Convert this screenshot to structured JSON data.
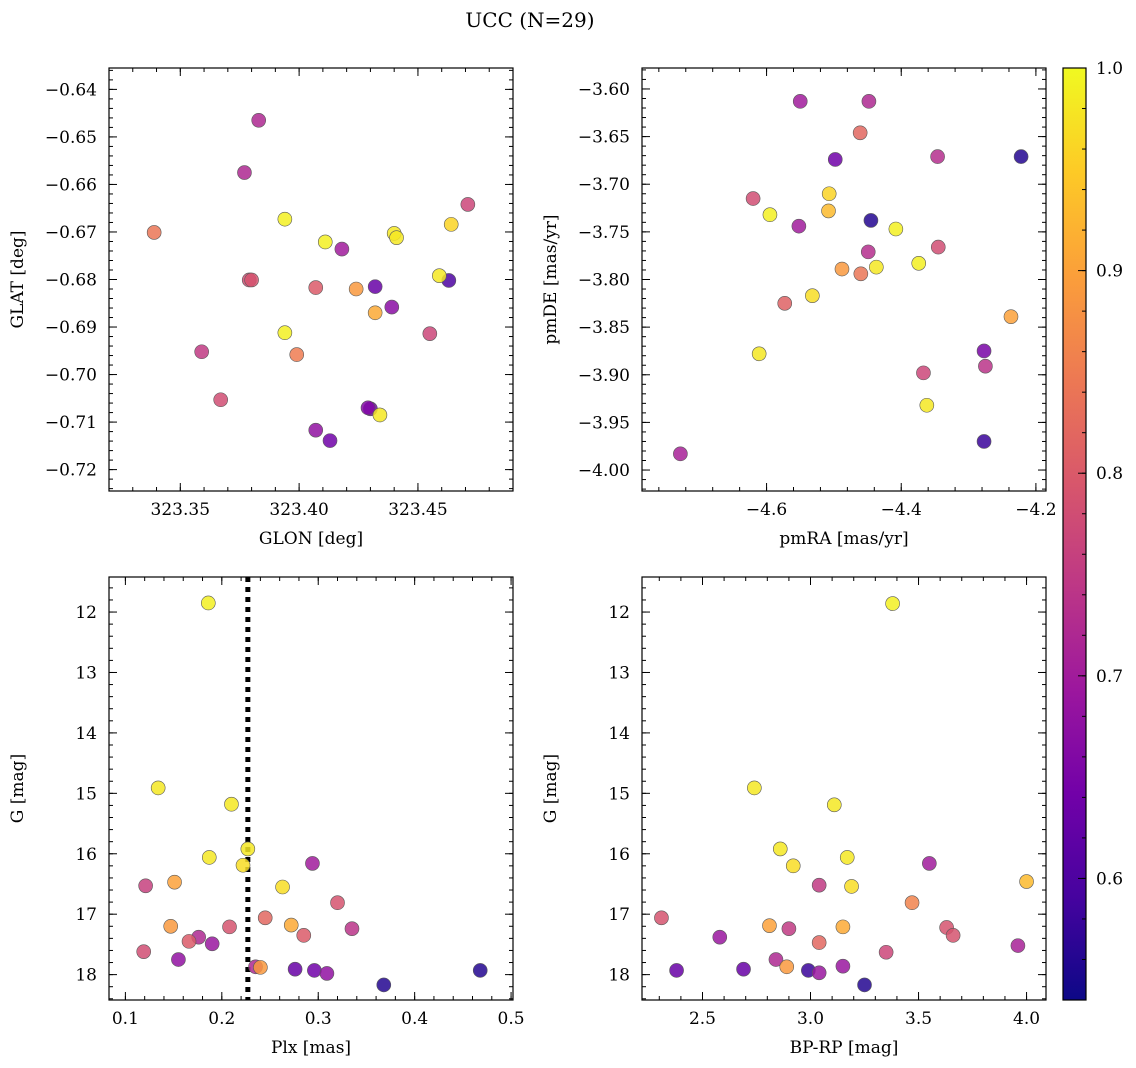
{
  "figure": {
    "title": "UCC (N=29)"
  },
  "colorbar": {
    "range": [
      0.54,
      1.0
    ],
    "ticks": [
      0.6,
      0.7,
      0.8,
      0.9,
      1.0
    ],
    "tick_labels": [
      "0.6",
      "0.7",
      "0.8",
      "0.9",
      "1.0"
    ],
    "colormap": "plasma",
    "colormap_stops": [
      "#0d0887",
      "#46039f",
      "#7201a8",
      "#9c179e",
      "#bd3786",
      "#d8576b",
      "#ed7953",
      "#fb9f3a",
      "#fdca26",
      "#f0f921"
    ]
  },
  "chart_data": [
    {
      "type": "scatter",
      "xlabel": "GLON [deg]",
      "ylabel": "GLAT [deg]",
      "xlim": [
        323.32,
        323.49
      ],
      "ylim": [
        -0.7245,
        -0.6355
      ],
      "invert_y": false,
      "xticks": [
        323.35,
        323.4,
        323.45
      ],
      "xtick_labels": [
        "323.35",
        "323.40",
        "323.45"
      ],
      "yticks": [
        -0.64,
        -0.65,
        -0.66,
        -0.67,
        -0.68,
        -0.69,
        -0.7,
        -0.71,
        -0.72
      ],
      "ytick_labels": [
        "−0.64",
        "−0.65",
        "−0.66",
        "−0.67",
        "−0.68",
        "−0.69",
        "−0.70",
        "−0.71",
        "−0.72"
      ],
      "points": [
        {
          "x": 323.339,
          "y": -0.6701,
          "c": 0.84
        },
        {
          "x": 323.383,
          "y": -0.6465,
          "c": 0.72
        },
        {
          "x": 323.377,
          "y": -0.6575,
          "c": 0.72
        },
        {
          "x": 323.394,
          "y": -0.6673,
          "c": 0.99
        },
        {
          "x": 323.411,
          "y": -0.6721,
          "c": 0.99
        },
        {
          "x": 323.418,
          "y": -0.6736,
          "c": 0.7
        },
        {
          "x": 323.44,
          "y": -0.6703,
          "c": 0.98
        },
        {
          "x": 323.441,
          "y": -0.6712,
          "c": 0.98
        },
        {
          "x": 323.464,
          "y": -0.6684,
          "c": 0.96
        },
        {
          "x": 323.471,
          "y": -0.6642,
          "c": 0.77
        },
        {
          "x": 323.379,
          "y": -0.6801,
          "c": 0.78
        },
        {
          "x": 323.38,
          "y": -0.6801,
          "c": 0.79
        },
        {
          "x": 323.407,
          "y": -0.6817,
          "c": 0.8
        },
        {
          "x": 323.424,
          "y": -0.682,
          "c": 0.89
        },
        {
          "x": 323.432,
          "y": -0.6815,
          "c": 0.63
        },
        {
          "x": 323.459,
          "y": -0.6792,
          "c": 0.98
        },
        {
          "x": 323.463,
          "y": -0.6802,
          "c": 0.6
        },
        {
          "x": 323.394,
          "y": -0.6912,
          "c": 0.99
        },
        {
          "x": 323.432,
          "y": -0.687,
          "c": 0.91
        },
        {
          "x": 323.439,
          "y": -0.6858,
          "c": 0.67
        },
        {
          "x": 323.455,
          "y": -0.6914,
          "c": 0.77
        },
        {
          "x": 323.359,
          "y": -0.6952,
          "c": 0.75
        },
        {
          "x": 323.399,
          "y": -0.6958,
          "c": 0.85
        },
        {
          "x": 323.367,
          "y": -0.7053,
          "c": 0.78
        },
        {
          "x": 323.429,
          "y": -0.707,
          "c": 0.66
        },
        {
          "x": 323.43,
          "y": -0.7072,
          "c": 0.64
        },
        {
          "x": 323.434,
          "y": -0.7085,
          "c": 0.98
        },
        {
          "x": 323.407,
          "y": -0.7117,
          "c": 0.68
        },
        {
          "x": 323.413,
          "y": -0.7139,
          "c": 0.64
        }
      ]
    },
    {
      "type": "scatter",
      "xlabel": "pmRA [mas/yr]",
      "ylabel": "pmDE [mas/yr]",
      "xlim": [
        -4.785,
        -4.185
      ],
      "ylim": [
        -4.022,
        -3.578
      ],
      "invert_y": false,
      "xticks": [
        -4.6,
        -4.4,
        -4.2
      ],
      "xtick_labels": [
        "−4.6",
        "−4.4",
        "−4.2"
      ],
      "yticks": [
        -3.6,
        -3.65,
        -3.7,
        -3.75,
        -3.8,
        -3.85,
        -3.9,
        -3.95,
        -4.0
      ],
      "ytick_labels": [
        "−3.60",
        "−3.65",
        "−3.70",
        "−3.75",
        "−3.80",
        "−3.85",
        "−3.90",
        "−3.95",
        "−4.00"
      ],
      "points": [
        {
          "x": -4.55,
          "y": -3.613,
          "c": 0.7
        },
        {
          "x": -4.448,
          "y": -3.613,
          "c": 0.72
        },
        {
          "x": -4.461,
          "y": -3.646,
          "c": 0.82
        },
        {
          "x": -4.498,
          "y": -3.674,
          "c": 0.64
        },
        {
          "x": -4.346,
          "y": -3.671,
          "c": 0.73
        },
        {
          "x": -4.222,
          "y": -3.671,
          "c": 0.56
        },
        {
          "x": -4.507,
          "y": -3.71,
          "c": 0.96
        },
        {
          "x": -4.62,
          "y": -3.715,
          "c": 0.78
        },
        {
          "x": -4.595,
          "y": -3.732,
          "c": 0.99
        },
        {
          "x": -4.508,
          "y": -3.728,
          "c": 0.93
        },
        {
          "x": -4.552,
          "y": -3.744,
          "c": 0.7
        },
        {
          "x": -4.445,
          "y": -3.738,
          "c": 0.56
        },
        {
          "x": -4.408,
          "y": -3.747,
          "c": 0.99
        },
        {
          "x": -4.449,
          "y": -3.771,
          "c": 0.73
        },
        {
          "x": -4.345,
          "y": -3.766,
          "c": 0.78
        },
        {
          "x": -4.488,
          "y": -3.789,
          "c": 0.89
        },
        {
          "x": -4.46,
          "y": -3.794,
          "c": 0.84
        },
        {
          "x": -4.437,
          "y": -3.787,
          "c": 0.98
        },
        {
          "x": -4.374,
          "y": -3.783,
          "c": 0.99
        },
        {
          "x": -4.573,
          "y": -3.825,
          "c": 0.81
        },
        {
          "x": -4.532,
          "y": -3.817,
          "c": 0.97
        },
        {
          "x": -4.237,
          "y": -3.839,
          "c": 0.9
        },
        {
          "x": -4.611,
          "y": -3.878,
          "c": 0.98
        },
        {
          "x": -4.277,
          "y": -3.875,
          "c": 0.65
        },
        {
          "x": -4.275,
          "y": -3.891,
          "c": 0.74
        },
        {
          "x": -4.367,
          "y": -3.898,
          "c": 0.77
        },
        {
          "x": -4.362,
          "y": -3.932,
          "c": 0.98
        },
        {
          "x": -4.277,
          "y": -3.97,
          "c": 0.58
        },
        {
          "x": -4.728,
          "y": -3.983,
          "c": 0.71
        }
      ]
    },
    {
      "type": "scatter",
      "xlabel": "Plx [mas]",
      "ylabel": "G [mag]",
      "xlim": [
        0.083,
        0.502
      ],
      "ylim": [
        11.42,
        18.42
      ],
      "invert_y": true,
      "xticks": [
        0.1,
        0.2,
        0.3,
        0.4,
        0.5
      ],
      "xtick_labels": [
        "0.1",
        "0.2",
        "0.3",
        "0.4",
        "0.5"
      ],
      "yticks": [
        12,
        13,
        14,
        15,
        16,
        17,
        18
      ],
      "ytick_labels": [
        "12",
        "13",
        "14",
        "15",
        "16",
        "17",
        "18"
      ],
      "vline": {
        "x": 0.227,
        "style": "dotted",
        "color": "#000000"
      },
      "points": [
        {
          "x": 0.186,
          "y": 11.85,
          "c": 0.99
        },
        {
          "x": 0.134,
          "y": 14.91,
          "c": 0.98
        },
        {
          "x": 0.21,
          "y": 15.18,
          "c": 0.98
        },
        {
          "x": 0.227,
          "y": 15.92,
          "c": 0.98
        },
        {
          "x": 0.187,
          "y": 16.06,
          "c": 0.98
        },
        {
          "x": 0.222,
          "y": 16.19,
          "c": 0.97
        },
        {
          "x": 0.121,
          "y": 16.53,
          "c": 0.76
        },
        {
          "x": 0.151,
          "y": 16.47,
          "c": 0.9
        },
        {
          "x": 0.263,
          "y": 16.55,
          "c": 0.97
        },
        {
          "x": 0.294,
          "y": 16.16,
          "c": 0.7
        },
        {
          "x": 0.32,
          "y": 16.81,
          "c": 0.79
        },
        {
          "x": 0.147,
          "y": 17.2,
          "c": 0.89
        },
        {
          "x": 0.208,
          "y": 17.21,
          "c": 0.79
        },
        {
          "x": 0.245,
          "y": 17.06,
          "c": 0.82
        },
        {
          "x": 0.272,
          "y": 17.18,
          "c": 0.91
        },
        {
          "x": 0.335,
          "y": 17.24,
          "c": 0.74
        },
        {
          "x": 0.285,
          "y": 17.35,
          "c": 0.8
        },
        {
          "x": 0.166,
          "y": 17.45,
          "c": 0.8
        },
        {
          "x": 0.176,
          "y": 17.38,
          "c": 0.72
        },
        {
          "x": 0.19,
          "y": 17.49,
          "c": 0.69
        },
        {
          "x": 0.119,
          "y": 17.62,
          "c": 0.78
        },
        {
          "x": 0.155,
          "y": 17.75,
          "c": 0.68
        },
        {
          "x": 0.235,
          "y": 17.87,
          "c": 0.72
        },
        {
          "x": 0.24,
          "y": 17.88,
          "c": 0.89
        },
        {
          "x": 0.276,
          "y": 17.91,
          "c": 0.63
        },
        {
          "x": 0.296,
          "y": 17.93,
          "c": 0.64
        },
        {
          "x": 0.309,
          "y": 17.98,
          "c": 0.68
        },
        {
          "x": 0.468,
          "y": 17.93,
          "c": 0.56
        },
        {
          "x": 0.368,
          "y": 18.17,
          "c": 0.56
        }
      ]
    },
    {
      "type": "scatter",
      "xlabel": "BP-RP [mag]",
      "ylabel": "G [mag]",
      "xlim": [
        2.22,
        4.09
      ],
      "ylim": [
        11.42,
        18.42
      ],
      "invert_y": true,
      "xticks": [
        2.5,
        3.0,
        3.5,
        4.0
      ],
      "xtick_labels": [
        "2.5",
        "3.0",
        "3.5",
        "4.0"
      ],
      "yticks": [
        12,
        13,
        14,
        15,
        16,
        17,
        18
      ],
      "ytick_labels": [
        "12",
        "13",
        "14",
        "15",
        "16",
        "17",
        "18"
      ],
      "points": [
        {
          "x": 3.38,
          "y": 11.86,
          "c": 0.99
        },
        {
          "x": 2.74,
          "y": 14.91,
          "c": 0.98
        },
        {
          "x": 3.11,
          "y": 15.19,
          "c": 0.98
        },
        {
          "x": 2.86,
          "y": 15.92,
          "c": 0.98
        },
        {
          "x": 3.17,
          "y": 16.06,
          "c": 0.98
        },
        {
          "x": 2.92,
          "y": 16.2,
          "c": 0.97
        },
        {
          "x": 3.04,
          "y": 16.52,
          "c": 0.75
        },
        {
          "x": 3.19,
          "y": 16.54,
          "c": 0.97
        },
        {
          "x": 3.55,
          "y": 16.16,
          "c": 0.7
        },
        {
          "x": 4.0,
          "y": 16.46,
          "c": 0.93
        },
        {
          "x": 3.47,
          "y": 16.81,
          "c": 0.86
        },
        {
          "x": 2.31,
          "y": 17.06,
          "c": 0.79
        },
        {
          "x": 2.81,
          "y": 17.19,
          "c": 0.9
        },
        {
          "x": 2.9,
          "y": 17.24,
          "c": 0.75
        },
        {
          "x": 3.15,
          "y": 17.21,
          "c": 0.91
        },
        {
          "x": 3.63,
          "y": 17.22,
          "c": 0.79
        },
        {
          "x": 3.66,
          "y": 17.35,
          "c": 0.79
        },
        {
          "x": 3.04,
          "y": 17.47,
          "c": 0.82
        },
        {
          "x": 2.58,
          "y": 17.38,
          "c": 0.69
        },
        {
          "x": 3.96,
          "y": 17.52,
          "c": 0.71
        },
        {
          "x": 3.35,
          "y": 17.63,
          "c": 0.77
        },
        {
          "x": 2.84,
          "y": 17.75,
          "c": 0.72
        },
        {
          "x": 2.89,
          "y": 17.87,
          "c": 0.89
        },
        {
          "x": 3.15,
          "y": 17.86,
          "c": 0.69
        },
        {
          "x": 2.38,
          "y": 17.93,
          "c": 0.63
        },
        {
          "x": 2.69,
          "y": 17.91,
          "c": 0.63
        },
        {
          "x": 2.99,
          "y": 17.93,
          "c": 0.58
        },
        {
          "x": 3.04,
          "y": 17.97,
          "c": 0.69
        },
        {
          "x": 3.25,
          "y": 18.17,
          "c": 0.56
        }
      ]
    }
  ]
}
